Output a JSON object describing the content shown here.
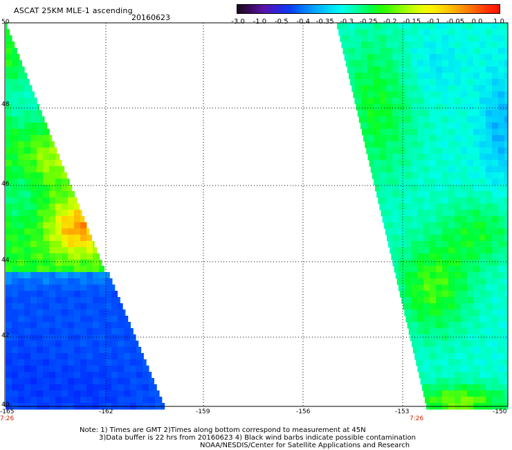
{
  "header": {
    "title": "ASCAT 25KM MLE-1 ascending",
    "date": "20160623"
  },
  "colorbar": {
    "ticks": [
      "-3.0",
      "-1.0",
      "-0.5",
      "-0.4",
      "-0.35",
      "-0.3",
      "-0.25",
      "-0.2",
      "-0.15",
      "-0.1",
      "-0.05",
      "0.0",
      "1.0"
    ],
    "colors": [
      "#1a0a1a",
      "#3b0a5e",
      "#5a14a8",
      "#3322d8",
      "#0a3cf0",
      "#0078ff",
      "#00aaff",
      "#00d8ff",
      "#00ffee",
      "#00ffaa",
      "#00ff55",
      "#22ff00",
      "#66ff00",
      "#aaff00",
      "#e6ff00",
      "#ffee00",
      "#ffc800",
      "#ff9a00",
      "#ff6a00",
      "#ff3300",
      "#ff1100"
    ]
  },
  "map": {
    "lat_labels": [
      "50",
      "48",
      "46",
      "44",
      "42",
      "40"
    ],
    "lon_labels": [
      "-165",
      "-162",
      "-159",
      "-156",
      "-153",
      "-150"
    ],
    "time_labels": [
      "7:26",
      "7:26"
    ]
  },
  "footer": {
    "line1": "Note: 1) Times are GMT 2)Times along bottom correspond to measurement at 45N",
    "line2": "3)Data buffer is 22 hrs from 20160623 4) Black wind barbs indicate possible contamination",
    "line3": "NOAA/NESDIS/Center for Satellite Applications and Research"
  }
}
